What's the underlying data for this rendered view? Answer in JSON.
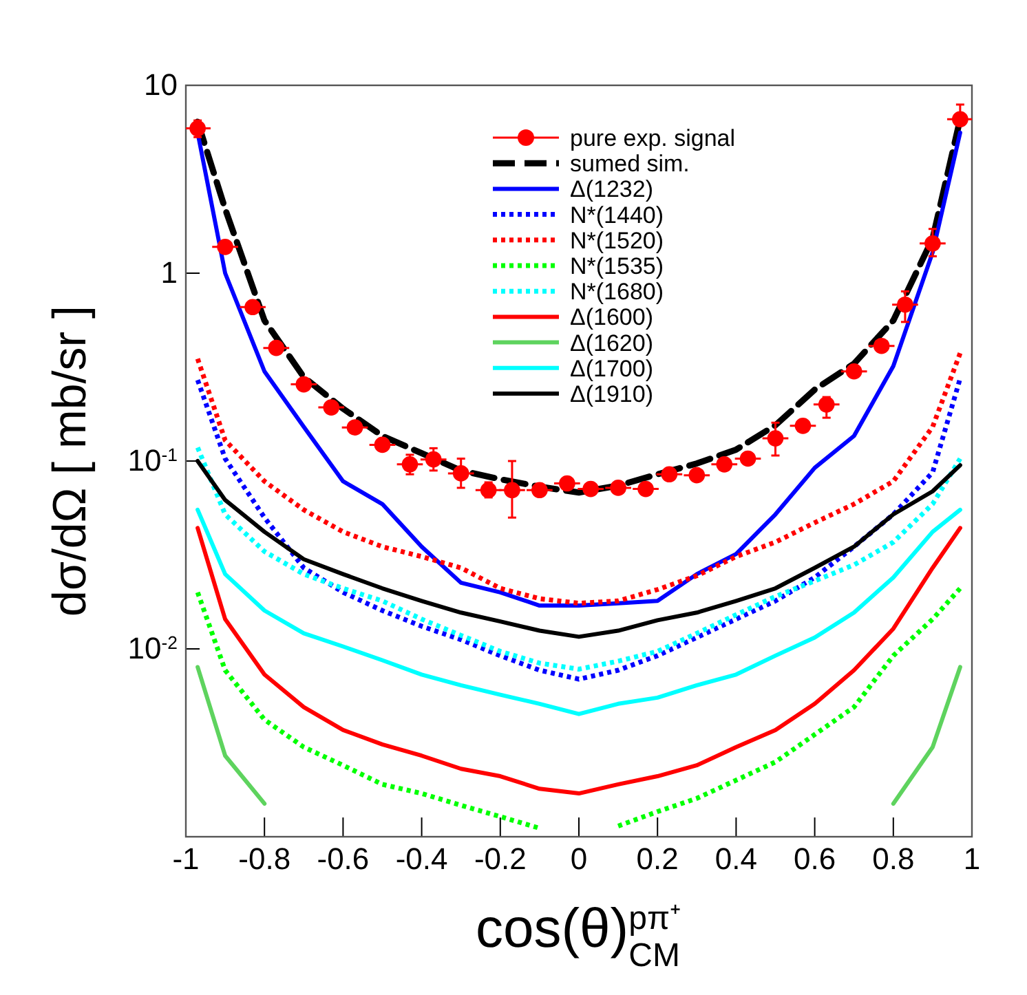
{
  "chart_data": {
    "type": "line",
    "xlabel": "cos(θ)$^{pπ⁺}$$_{CM}$",
    "ylabel": "dσ/dΩ [ mb/sr ]",
    "log": "y",
    "legend": "top right",
    "xlim": [
      -1,
      1
    ],
    "xticks": [
      -1,
      -0.8,
      -0.6,
      -0.4,
      -0.2,
      0,
      0.2,
      0.4,
      0.6,
      0.8,
      1
    ],
    "ylim": [
      0.001,
      10
    ],
    "yticks": [
      {
        "value": 0.01,
        "label": "10$^{-2}$"
      },
      {
        "value": 0.1,
        "label": "10$^{-1}$"
      },
      1,
      10
    ],
    "x": [
      -0.97,
      -0.9,
      -0.8,
      -0.7,
      -0.6,
      -0.5,
      -0.4,
      -0.3,
      -0.2,
      -0.1,
      0,
      0.1,
      0.2,
      0.3,
      0.4,
      0.5,
      0.6,
      0.7,
      0.8,
      0.9,
      0.97
    ],
    "series": [
      {
        "name": "pure exp. signal",
        "type": "scatter",
        "marker": "circle",
        "color": "#ff0000",
        "x": [
          -0.97,
          -0.9,
          -0.83,
          -0.77,
          -0.7,
          -0.63,
          -0.57,
          -0.5,
          -0.43,
          -0.37,
          -0.3,
          -0.23,
          -0.17,
          -0.1,
          -0.03,
          0.03,
          0.1,
          0.17,
          0.23,
          0.3,
          0.37,
          0.43,
          0.5,
          0.57,
          0.63,
          0.7,
          0.77,
          0.83,
          0.9,
          0.97
        ],
        "values": [
          5.9,
          1.38,
          0.66,
          0.4,
          0.256,
          0.193,
          0.151,
          0.122,
          0.096,
          0.102,
          0.086,
          0.07,
          0.07,
          0.07,
          0.076,
          0.071,
          0.072,
          0.071,
          0.085,
          0.084,
          0.096,
          0.103,
          0.132,
          0.154,
          0.2,
          0.3,
          0.41,
          0.68,
          1.44,
          6.6
        ],
        "errors": [
          [
            5.3,
            6.5
          ],
          null,
          null,
          null,
          null,
          null,
          null,
          null,
          [
            0.085,
            0.108
          ],
          [
            0.089,
            0.117
          ],
          [
            0.072,
            0.103
          ],
          [
            0.064,
            0.077
          ],
          [
            0.05,
            0.1
          ],
          null,
          null,
          null,
          null,
          null,
          null,
          null,
          null,
          null,
          [
            0.107,
            0.16
          ],
          null,
          [
            0.17,
            0.219
          ],
          null,
          null,
          [
            0.55,
            0.8
          ],
          [
            1.23,
            1.72
          ],
          [
            6.2,
            7.9
          ]
        ],
        "xerrors": [
          0.033,
          0.033,
          0.033,
          0.033,
          0.033,
          0.033,
          0.033,
          0.033,
          0.033,
          0.033,
          0.033,
          0.033,
          0.033,
          0.033,
          0.033,
          0.033,
          0.033,
          0.033,
          0.033,
          0.033,
          0.033,
          0.033,
          0.033,
          0.033,
          0.033,
          0.033,
          0.033,
          0.033,
          0.033,
          0.033
        ]
      },
      {
        "name": "sumed sim.",
        "color": "#000000",
        "line_style": "dashed",
        "values": [
          6.4,
          2.2,
          0.56,
          0.28,
          0.19,
          0.136,
          0.11,
          0.089,
          0.08,
          0.073,
          0.068,
          0.074,
          0.085,
          0.097,
          0.115,
          0.155,
          0.24,
          0.33,
          0.56,
          1.53,
          6.6
        ]
      },
      {
        "name": "Δ(1232)",
        "color": "#0000ff",
        "line_style": "solid",
        "values": [
          5.6,
          1.0,
          0.3,
          0.152,
          0.078,
          0.059,
          0.035,
          0.0225,
          0.02,
          0.017,
          0.017,
          0.0175,
          0.018,
          0.025,
          0.032,
          0.052,
          0.092,
          0.136,
          0.32,
          1.29,
          5.6
        ]
      },
      {
        "name": "N*(1440)",
        "color": "#0000ff",
        "line_style": "dotted",
        "values": [
          0.27,
          0.103,
          0.05,
          0.027,
          0.02,
          0.016,
          0.0132,
          0.0112,
          0.0092,
          0.0077,
          0.0069,
          0.0077,
          0.0092,
          0.0115,
          0.0144,
          0.018,
          0.024,
          0.035,
          0.052,
          0.087,
          0.275
        ]
      },
      {
        "name": "N*(1520)",
        "color": "#ff0000",
        "line_style": "dotted",
        "values": [
          0.35,
          0.129,
          0.078,
          0.055,
          0.042,
          0.035,
          0.031,
          0.027,
          0.021,
          0.0185,
          0.0175,
          0.018,
          0.0207,
          0.0245,
          0.031,
          0.037,
          0.047,
          0.059,
          0.078,
          0.152,
          0.375
        ]
      },
      {
        "name": "N*(1535)",
        "color": "#00ff00",
        "line_style": "dotted",
        "values": [
          0.02,
          0.0077,
          0.0042,
          0.003,
          0.0024,
          0.0019,
          0.0017,
          0.00147,
          0.00128,
          0.00111,
          null,
          0.00114,
          0.00136,
          0.0016,
          0.002,
          0.0025,
          0.0035,
          0.0049,
          0.0092,
          0.0144,
          0.021
        ]
      },
      {
        "name": "N*(1680)",
        "color": "#00ffff",
        "line_style": "dotted",
        "values": [
          0.118,
          0.052,
          0.033,
          0.025,
          0.021,
          0.018,
          0.0144,
          0.0118,
          0.0097,
          0.0084,
          0.0078,
          0.0086,
          0.0097,
          0.0121,
          0.0152,
          0.019,
          0.023,
          0.028,
          0.037,
          0.059,
          0.103
        ]
      },
      {
        "name": "Δ(1600)",
        "color": "#ff0000",
        "line_style": "solid",
        "values": [
          0.044,
          0.0144,
          0.0073,
          0.0049,
          0.0037,
          0.0031,
          0.0027,
          0.0023,
          0.0021,
          0.0018,
          0.0017,
          0.0019,
          0.0021,
          0.0024,
          0.003,
          0.0037,
          0.0051,
          0.0077,
          0.0128,
          0.027,
          0.044
        ]
      },
      {
        "name": "Δ(1620)",
        "color": "#5ed35e",
        "line_style": "solid",
        "values": [
          0.008,
          0.0027,
          0.0015,
          null,
          null,
          null,
          null,
          null,
          null,
          null,
          null,
          null,
          null,
          null,
          null,
          null,
          null,
          null,
          0.0015,
          0.003,
          0.008
        ]
      },
      {
        "name": "Δ(1700)",
        "color": "#00ffff",
        "line_style": "solid",
        "values": [
          0.055,
          0.025,
          0.016,
          0.0121,
          0.0103,
          0.0087,
          0.0073,
          0.0064,
          0.0057,
          0.0051,
          0.0045,
          0.0051,
          0.0055,
          0.0064,
          0.0073,
          0.0092,
          0.0115,
          0.0156,
          0.024,
          0.042,
          0.055
        ]
      },
      {
        "name": "Δ(1910)",
        "color": "#000000",
        "line_style": "solid",
        "values": [
          0.1,
          0.062,
          0.042,
          0.03,
          0.025,
          0.021,
          0.018,
          0.0156,
          0.014,
          0.0125,
          0.0116,
          0.0125,
          0.0142,
          0.0156,
          0.018,
          0.021,
          0.027,
          0.035,
          0.052,
          0.069,
          0.095
        ]
      }
    ]
  }
}
